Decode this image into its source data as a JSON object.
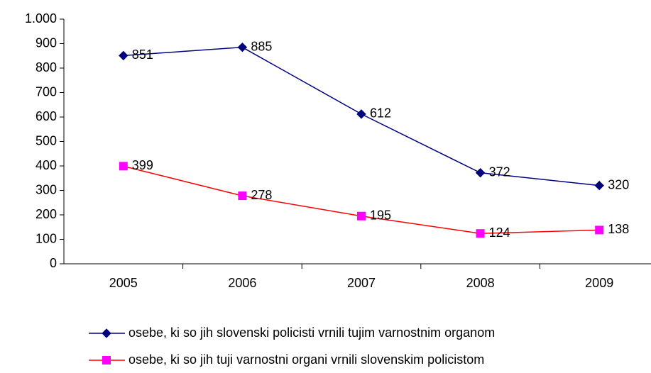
{
  "chart_data": {
    "type": "line",
    "categories": [
      "2005",
      "2006",
      "2007",
      "2008",
      "2009"
    ],
    "series": [
      {
        "name": "osebe, ki so jih slovenski policisti vrnili tujim varnostnim organom",
        "color": "#000080",
        "marker": "diamond",
        "marker_color": "#000080",
        "values": [
          851,
          885,
          612,
          372,
          320
        ]
      },
      {
        "name": "osebe, ki so jih tuji varnostni organi vrnili slovenskim policistom",
        "color": "#ff0000",
        "marker": "square",
        "marker_color": "#ff00ff",
        "values": [
          399,
          278,
          195,
          124,
          138
        ]
      }
    ],
    "ylim": [
      0,
      1000
    ],
    "yticks": [
      0,
      100,
      200,
      300,
      400,
      500,
      600,
      700,
      800,
      900,
      {
        "value": 1000,
        "label": "1.000"
      }
    ],
    "grid": false,
    "legend": "bottom"
  }
}
